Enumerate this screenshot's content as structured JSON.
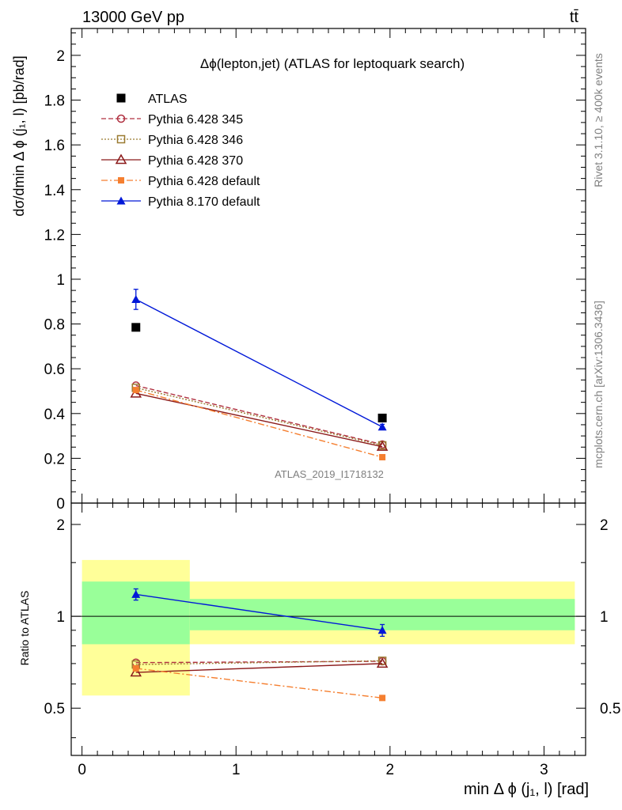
{
  "header": {
    "left_label": "13000 GeV pp",
    "right_label": "tt̄"
  },
  "side_labels": {
    "rivet": "Rivet 3.1.10, ≥ 400k events",
    "mcplots": "mcplots.cern.ch [arXiv:1306.3436]"
  },
  "chart_data": [
    {
      "type": "scatter",
      "title": "Δϕ(lepton,jet) (ATLAS for leptoquark search)",
      "ylabel": "dσ/dmin Δ ϕ (j₁, l) [pb/rad]",
      "xlabel": "",
      "watermark": "ATLAS_2019_I1718132",
      "xlim": [
        -0.07,
        3.27
      ],
      "ylim": [
        0,
        2.12
      ],
      "y_ticks": [
        "0",
        "0.2",
        "0.4",
        "0.6",
        "0.8",
        "1",
        "1.2",
        "1.4",
        "1.6",
        "1.8",
        "2"
      ],
      "legend_position": "top-left",
      "series": [
        {
          "name": "ATLAS",
          "color": "#000000",
          "marker": "square-filled",
          "line": "none",
          "x": [
            0.35,
            1.95
          ],
          "y": [
            0.785,
            0.38
          ]
        },
        {
          "name": "Pythia 6.428 345",
          "color": "#b03040",
          "marker": "circle-open",
          "line": "dashed",
          "x": [
            0.35,
            1.95
          ],
          "y": [
            0.525,
            0.262
          ]
        },
        {
          "name": "Pythia 6.428 346",
          "color": "#9a7a30",
          "marker": "square-open",
          "line": "dotted",
          "x": [
            0.35,
            1.95
          ],
          "y": [
            0.515,
            0.258
          ]
        },
        {
          "name": "Pythia 6.428 370",
          "color": "#8b1a1a",
          "marker": "triangle-open",
          "line": "solid",
          "x": [
            0.35,
            1.95
          ],
          "y": [
            0.49,
            0.252
          ]
        },
        {
          "name": "Pythia 6.428 default",
          "color": "#f57f30",
          "marker": "square-filled-small",
          "line": "dashdot",
          "x": [
            0.35,
            1.95
          ],
          "y": [
            0.505,
            0.205
          ]
        },
        {
          "name": "Pythia 8.170 default",
          "color": "#0018d8",
          "marker": "triangle-filled",
          "line": "solid",
          "x": [
            0.35,
            1.95
          ],
          "y": [
            0.91,
            0.34
          ],
          "yerr": [
            0.045,
            0.012
          ]
        }
      ]
    },
    {
      "type": "scatter",
      "title": "",
      "ylabel": "Ratio to ATLAS",
      "xlabel": "min Δ ϕ (j₁, l) [rad]",
      "xlim": [
        -0.07,
        3.27
      ],
      "ylim": [
        0.35,
        2.35
      ],
      "x_ticks": [
        "0",
        "1",
        "2",
        "3"
      ],
      "y_ticks": [
        "0.5",
        "1",
        "2"
      ],
      "bands": [
        {
          "x_range": [
            0.0,
            0.7
          ],
          "inner": [
            0.81,
            1.3
          ],
          "outer": [
            0.55,
            1.53
          ]
        },
        {
          "x_range": [
            0.7,
            3.2
          ],
          "inner": [
            0.9,
            1.14
          ],
          "outer": [
            0.81,
            1.3
          ]
        }
      ],
      "reference_line": 1,
      "series": [
        {
          "name": "Pythia 6.428 345",
          "color": "#b03040",
          "marker": "circle-open",
          "line": "dashed",
          "x": [
            0.35,
            1.95
          ],
          "y": [
            0.705,
            0.712
          ]
        },
        {
          "name": "Pythia 6.428 346",
          "color": "#9a7a30",
          "marker": "square-open",
          "line": "dotted",
          "x": [
            0.35,
            1.95
          ],
          "y": [
            0.695,
            0.715
          ]
        },
        {
          "name": "Pythia 6.428 370",
          "color": "#8b1a1a",
          "marker": "triangle-open",
          "line": "solid",
          "x": [
            0.35,
            1.95
          ],
          "y": [
            0.655,
            0.7
          ]
        },
        {
          "name": "Pythia 6.428 default",
          "color": "#f57f30",
          "marker": "square-filled-small",
          "line": "dashdot",
          "x": [
            0.35,
            1.95
          ],
          "y": [
            0.675,
            0.54
          ]
        },
        {
          "name": "Pythia 8.170 default",
          "color": "#0018d8",
          "marker": "triangle-filled",
          "line": "solid",
          "x": [
            0.35,
            1.95
          ],
          "y": [
            1.18,
            0.9
          ],
          "yerr": [
            0.05,
            0.04
          ]
        }
      ]
    }
  ]
}
